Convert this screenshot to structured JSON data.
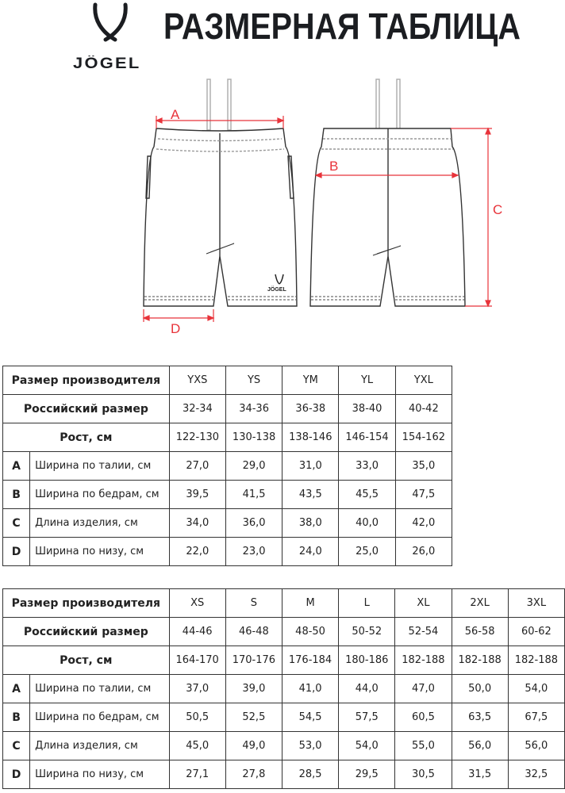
{
  "header": {
    "brand": "JÖGEL",
    "title": "РАЗМЕРНАЯ ТАБЛИЦА"
  },
  "diagram": {
    "dimension_labels": {
      "a": "A",
      "b": "B",
      "c": "C",
      "d": "D"
    },
    "garment_logo_text": "JÖGEL",
    "colors": {
      "dimension": "#e8333a",
      "outline": "#333333"
    }
  },
  "tables": [
    {
      "header_label": "Размер производителя",
      "russian_label": "Российский размер",
      "height_label": "Рост, см",
      "sizes": [
        "YXS",
        "YS",
        "YM",
        "YL",
        "YXL"
      ],
      "russian": [
        "32-34",
        "34-36",
        "36-38",
        "38-40",
        "40-42"
      ],
      "height": [
        "122-130",
        "130-138",
        "138-146",
        "146-154",
        "154-162"
      ],
      "measures": [
        {
          "letter": "A",
          "label": "Ширина по талии, см",
          "values": [
            "27,0",
            "29,0",
            "31,0",
            "33,0",
            "35,0"
          ]
        },
        {
          "letter": "B",
          "label": "Ширина по бедрам, см",
          "values": [
            "39,5",
            "41,5",
            "43,5",
            "45,5",
            "47,5"
          ]
        },
        {
          "letter": "C",
          "label": "Длина изделия, см",
          "values": [
            "34,0",
            "36,0",
            "38,0",
            "40,0",
            "42,0"
          ]
        },
        {
          "letter": "D",
          "label": "Ширина по низу, см",
          "values": [
            "22,0",
            "23,0",
            "24,0",
            "25,0",
            "26,0"
          ]
        }
      ]
    },
    {
      "header_label": "Размер производителя",
      "russian_label": "Российский размер",
      "height_label": "Рост, см",
      "sizes": [
        "XS",
        "S",
        "M",
        "L",
        "XL",
        "2XL",
        "3XL"
      ],
      "russian": [
        "44-46",
        "46-48",
        "48-50",
        "50-52",
        "52-54",
        "56-58",
        "60-62"
      ],
      "height": [
        "164-170",
        "170-176",
        "176-184",
        "180-186",
        "182-188",
        "182-188",
        "182-188"
      ],
      "measures": [
        {
          "letter": "A",
          "label": "Ширина по талии, см",
          "values": [
            "37,0",
            "39,0",
            "41,0",
            "44,0",
            "47,0",
            "50,0",
            "54,0"
          ]
        },
        {
          "letter": "B",
          "label": "Ширина по бедрам, см",
          "values": [
            "50,5",
            "52,5",
            "54,5",
            "57,5",
            "60,5",
            "63,5",
            "67,5"
          ]
        },
        {
          "letter": "C",
          "label": "Длина изделия, см",
          "values": [
            "45,0",
            "49,0",
            "53,0",
            "54,0",
            "55,0",
            "56,0",
            "56,0"
          ]
        },
        {
          "letter": "D",
          "label": "Ширина по низу, см",
          "values": [
            "27,1",
            "27,8",
            "28,5",
            "29,5",
            "30,5",
            "31,5",
            "32,5"
          ]
        }
      ]
    }
  ]
}
